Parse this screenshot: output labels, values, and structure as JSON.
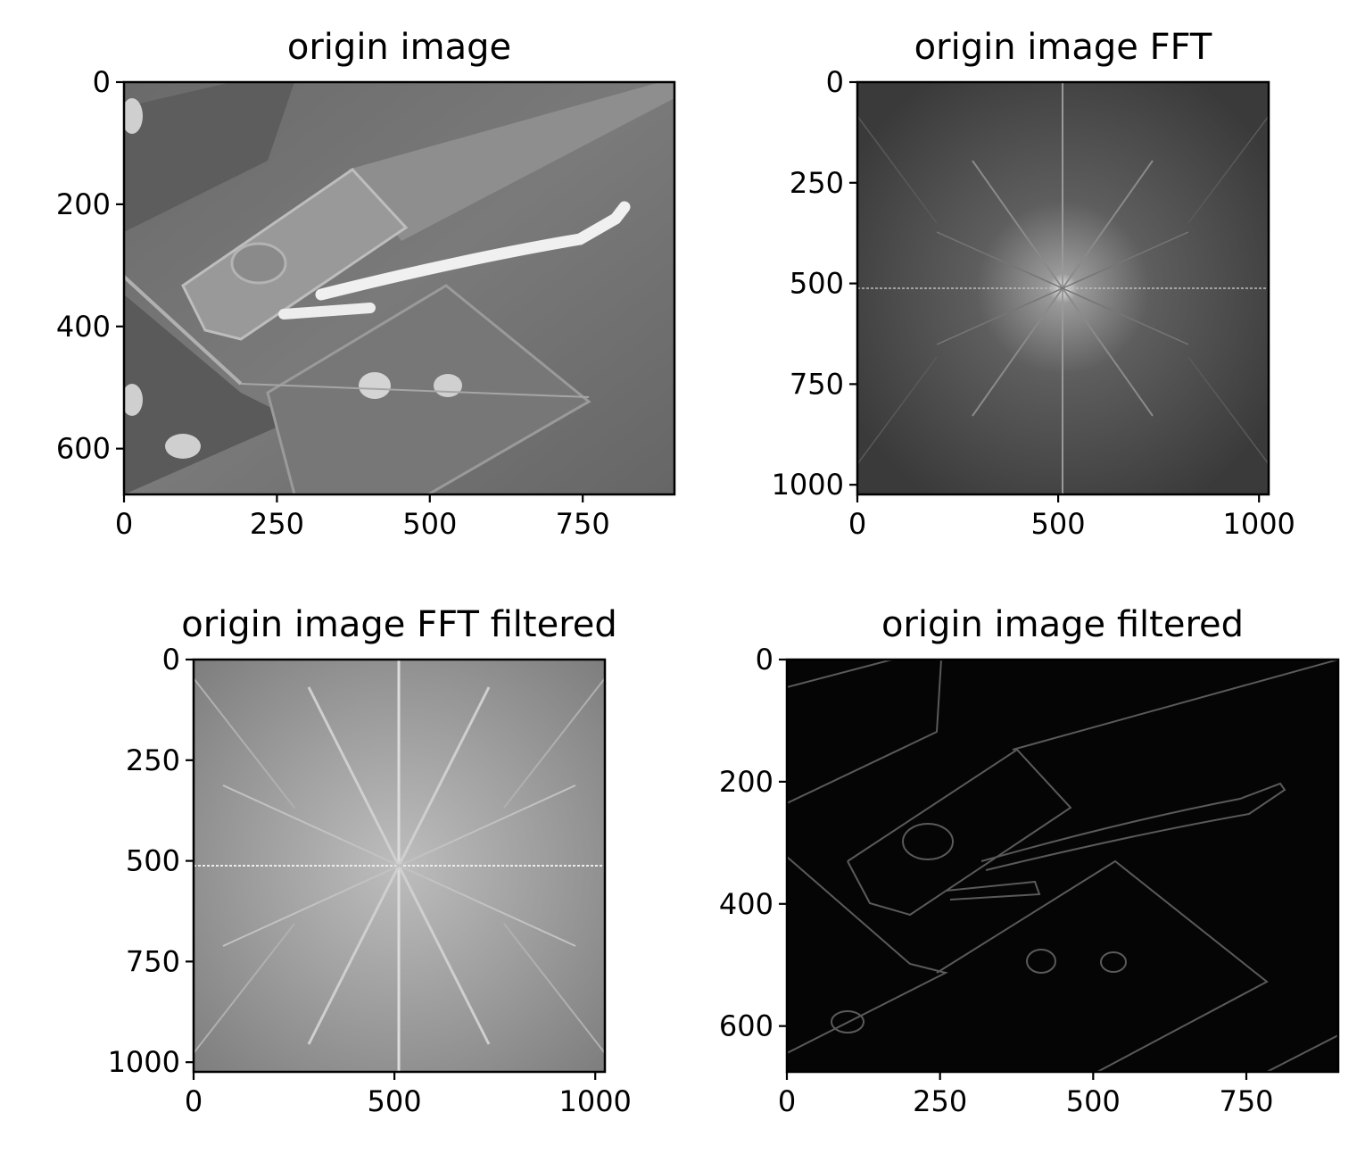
{
  "chart_data": [
    {
      "type": "image",
      "title": "origin image",
      "xlim": [
        0,
        900
      ],
      "ylim": [
        675,
        0
      ],
      "x_ticks": [
        0,
        250,
        500,
        750
      ],
      "y_ticks": [
        0,
        200,
        400,
        600
      ],
      "colormap": "gray"
    },
    {
      "type": "image",
      "title": "origin image FFT",
      "xlim": [
        0,
        1024
      ],
      "ylim": [
        1024,
        0
      ],
      "x_ticks": [
        0,
        500,
        1000
      ],
      "y_ticks": [
        0,
        250,
        500,
        750,
        1000
      ],
      "colormap": "gray"
    },
    {
      "type": "image",
      "title": "origin image FFT filtered",
      "xlim": [
        0,
        1024
      ],
      "ylim": [
        1024,
        0
      ],
      "x_ticks": [
        0,
        500,
        1000
      ],
      "y_ticks": [
        0,
        250,
        500,
        750,
        1000
      ],
      "colormap": "gray"
    },
    {
      "type": "image",
      "title": "origin image filtered",
      "xlim": [
        0,
        900
      ],
      "ylim": [
        675,
        0
      ],
      "x_ticks": [
        0,
        250,
        500,
        750
      ],
      "y_ticks": [
        0,
        200,
        400,
        600
      ],
      "colormap": "gray"
    }
  ]
}
